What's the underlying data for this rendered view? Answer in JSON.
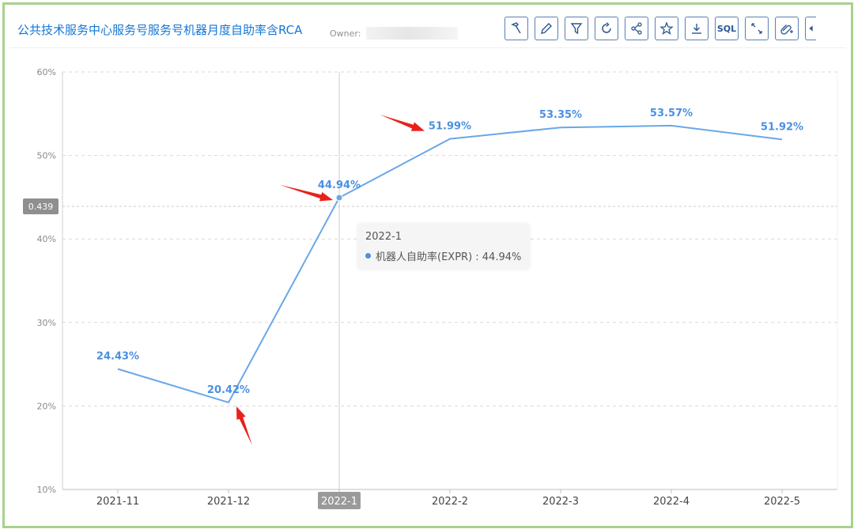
{
  "header": {
    "title": "公共技术服务中心服务号服务号机器月度自助率含RCA",
    "owner_label": "Owner:"
  },
  "toolbar": [
    {
      "icon": "hammer-icon",
      "name": "build-button"
    },
    {
      "icon": "pencil-icon",
      "name": "edit-button"
    },
    {
      "icon": "filter-icon",
      "name": "filter-button"
    },
    {
      "icon": "refresh-icon",
      "name": "refresh-button"
    },
    {
      "icon": "share-icon",
      "name": "share-button"
    },
    {
      "icon": "star-icon",
      "name": "favorite-button"
    },
    {
      "icon": "download-icon",
      "name": "download-button"
    },
    {
      "icon": "sql-icon",
      "name": "sql-button",
      "text": "SQL"
    },
    {
      "icon": "expand-icon",
      "name": "fullscreen-button"
    },
    {
      "icon": "add-link-icon",
      "name": "add-link-button"
    }
  ],
  "colors": {
    "line": "#6aa7e8",
    "label": "#4a90e2",
    "arrow": "#e8221b",
    "frame": "#a9d18e"
  },
  "chart_data": {
    "type": "line",
    "categories": [
      "2021-11",
      "2021-12",
      "2022-1",
      "2022-2",
      "2022-3",
      "2022-4",
      "2022-5"
    ],
    "series": [
      {
        "name": "机器人自助率(EXPR)",
        "values": [
          24.43,
          20.42,
          44.94,
          51.99,
          53.35,
          53.57,
          51.92
        ],
        "labels": [
          "24.43%",
          "20.42%",
          "44.94%",
          "51.99%",
          "53.35%",
          "53.57%",
          "51.92%"
        ]
      }
    ],
    "y_ticks": [
      10,
      20,
      30,
      40,
      50,
      60
    ],
    "y_tick_labels": [
      "10%",
      "20%",
      "30%",
      "40%",
      "50%",
      "60%"
    ],
    "ylim": [
      10,
      60
    ],
    "grid": true,
    "crosshair": {
      "category": "2022-1",
      "y_value": 43.9,
      "y_label": "0.439"
    },
    "tooltip": {
      "title": "2022-1",
      "text": "机器人自助率(EXPR) : 44.94%"
    },
    "arrow_targets": [
      "2021-12",
      "2022-1",
      "2022-2"
    ]
  }
}
